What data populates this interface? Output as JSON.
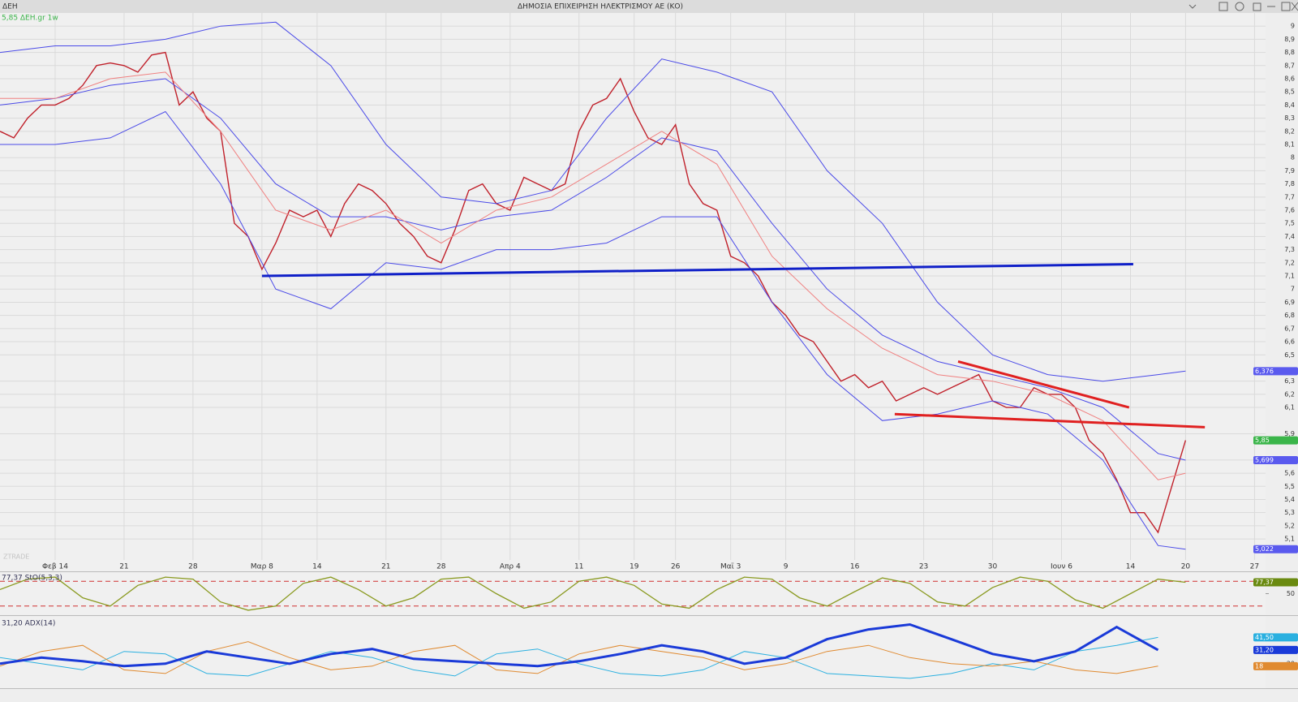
{
  "header": {
    "symbol": "ΔΕΗ",
    "title": "ΔΗΜΟΣΙΑ ΕΠΙΧΕΙΡΗΣΗ ΗΛΕΚΤΡΙΣΜΟΥ ΑΕ (ΚΟ)",
    "watermark": "ZTRADE"
  },
  "chart_data": [
    {
      "type": "line",
      "title": "5,85 ΔΕΗ.gr 1w",
      "grid": true,
      "xlim": [
        -4,
        87.8
      ],
      "xticks": [
        {
          "value": 0,
          "label": "Φεβ 14"
        },
        {
          "value": 5,
          "label": "21"
        },
        {
          "value": 10,
          "label": "28"
        },
        {
          "value": 15,
          "label": "Μαρ 8"
        },
        {
          "value": 19,
          "label": "14"
        },
        {
          "value": 24,
          "label": "21"
        },
        {
          "value": 28,
          "label": "28"
        },
        {
          "value": 33,
          "label": "Απρ 4"
        },
        {
          "value": 38,
          "label": "11"
        },
        {
          "value": 42,
          "label": "19"
        },
        {
          "value": 45,
          "label": "26"
        },
        {
          "value": 49,
          "label": "Μαϊ 3"
        },
        {
          "value": 53,
          "label": "9"
        },
        {
          "value": 58,
          "label": "16"
        },
        {
          "value": 63,
          "label": "23"
        },
        {
          "value": 68,
          "label": "30"
        },
        {
          "value": 73,
          "label": "Ιουν 6"
        },
        {
          "value": 78,
          "label": "14"
        },
        {
          "value": 82,
          "label": "20"
        },
        {
          "value": 87,
          "label": "27"
        }
      ],
      "ylim": [
        4.94,
        9.1
      ],
      "yticks": [
        {
          "value": 5.1,
          "label": "5,1"
        },
        {
          "value": 5.2,
          "label": "5,2"
        },
        {
          "value": 5.3,
          "label": "5,3"
        },
        {
          "value": 5.4,
          "label": "5,4"
        },
        {
          "value": 5.5,
          "label": "5,5"
        },
        {
          "value": 5.6,
          "label": "5,6"
        },
        {
          "value": 5.7,
          "label": "5,7"
        },
        {
          "value": 5.9,
          "label": "5,9"
        },
        {
          "value": 6.1,
          "label": "6,1"
        },
        {
          "value": 6.2,
          "label": "6,2"
        },
        {
          "value": 6.3,
          "label": "6,3"
        },
        {
          "value": 6.5,
          "label": "6,5"
        },
        {
          "value": 6.6,
          "label": "6,6"
        },
        {
          "value": 6.7,
          "label": "6,7"
        },
        {
          "value": 6.8,
          "label": "6,8"
        },
        {
          "value": 6.9,
          "label": "6,9"
        },
        7,
        {
          "value": 7.1,
          "label": "7,1"
        },
        {
          "value": 7.2,
          "label": "7,2"
        },
        {
          "value": 7.3,
          "label": "7,3"
        },
        {
          "value": 7.4,
          "label": "7,4"
        },
        {
          "value": 7.5,
          "label": "7,5"
        },
        {
          "value": 7.6,
          "label": "7,6"
        },
        {
          "value": 7.7,
          "label": "7,7"
        },
        {
          "value": 7.8,
          "label": "7,8"
        },
        {
          "value": 7.9,
          "label": "7,9"
        },
        8,
        {
          "value": 8.1,
          "label": "8,1"
        },
        {
          "value": 8.2,
          "label": "8,2"
        },
        {
          "value": 8.3,
          "label": "8,3"
        },
        {
          "value": 8.4,
          "label": "8,4"
        },
        {
          "value": 8.5,
          "label": "8,5"
        },
        {
          "value": 8.6,
          "label": "8,6"
        },
        {
          "value": 8.7,
          "label": "8,7"
        },
        {
          "value": 8.8,
          "label": "8,8"
        },
        {
          "value": 8.9,
          "label": "8,9"
        },
        9
      ],
      "series": [
        {
          "color": "#c0202a",
          "width": 1.4,
          "x": [
            -4,
            -3,
            -2,
            -1,
            0,
            1,
            2,
            3,
            4,
            5,
            6,
            7,
            8,
            9,
            10,
            11,
            12,
            13,
            14,
            15,
            16,
            17,
            18,
            19,
            20,
            21,
            22,
            23,
            24,
            25,
            26,
            27,
            28,
            29,
            30,
            31,
            32,
            33,
            34,
            35,
            36,
            37,
            38,
            39,
            40,
            41,
            42,
            43,
            44,
            45,
            46,
            47,
            48,
            49,
            50,
            51,
            52,
            53,
            54,
            55,
            56,
            57,
            58,
            59,
            60,
            61,
            62,
            63,
            64,
            65,
            66,
            67,
            68,
            69,
            70,
            71,
            72,
            73,
            74,
            75,
            76,
            77,
            78,
            79,
            80,
            81,
            82
          ],
          "values": [
            8.2,
            8.15,
            8.3,
            8.4,
            8.4,
            8.45,
            8.55,
            8.7,
            8.72,
            8.7,
            8.65,
            8.78,
            8.8,
            8.4,
            8.5,
            8.3,
            8.2,
            7.5,
            7.4,
            7.15,
            7.35,
            7.6,
            7.55,
            7.6,
            7.4,
            7.65,
            7.8,
            7.75,
            7.65,
            7.5,
            7.4,
            7.25,
            7.2,
            7.45,
            7.75,
            7.8,
            7.65,
            7.6,
            7.85,
            7.8,
            7.75,
            7.8,
            8.2,
            8.4,
            8.45,
            8.6,
            8.35,
            8.15,
            8.1,
            8.25,
            7.8,
            7.65,
            7.6,
            7.25,
            7.2,
            7.1,
            6.9,
            6.8,
            6.65,
            6.6,
            6.45,
            6.3,
            6.35,
            6.25,
            6.3,
            6.15,
            6.2,
            6.25,
            6.2,
            6.25,
            6.3,
            6.35,
            6.15,
            6.1,
            6.1,
            6.25,
            6.2,
            6.2,
            6.1,
            5.85,
            5.75,
            5.55,
            5.3,
            5.3,
            5.15,
            5.5,
            5.85
          ],
          "value_label": "5,85",
          "label_color": "#3bb54a"
        },
        {
          "color": "#4a4ae8",
          "width": 1,
          "x": [
            -4,
            0,
            4,
            8,
            12,
            16,
            20,
            24,
            28,
            32,
            36,
            40,
            44,
            48,
            52,
            56,
            60,
            64,
            68,
            72,
            76,
            80,
            82
          ],
          "values": [
            8.8,
            8.85,
            8.85,
            8.9,
            9.0,
            9.03,
            8.7,
            8.1,
            7.7,
            7.65,
            7.75,
            8.3,
            8.75,
            8.65,
            8.5,
            7.9,
            7.5,
            6.9,
            6.5,
            6.35,
            6.3,
            6.35,
            6.376
          ],
          "value_label": "6,376",
          "label_color": "#5a5aee"
        },
        {
          "color": "#4a4ae8",
          "width": 1,
          "x": [
            -4,
            0,
            4,
            8,
            12,
            16,
            20,
            24,
            28,
            32,
            36,
            40,
            44,
            48,
            52,
            56,
            60,
            64,
            68,
            72,
            76,
            80,
            82
          ],
          "values": [
            8.4,
            8.45,
            8.55,
            8.6,
            8.3,
            7.8,
            7.55,
            7.55,
            7.45,
            7.55,
            7.6,
            7.85,
            8.15,
            8.05,
            7.5,
            7.0,
            6.65,
            6.45,
            6.35,
            6.25,
            6.1,
            5.75,
            5.699
          ],
          "value_label": "5,699",
          "label_color": "#5a5aee"
        },
        {
          "color": "#f08080",
          "width": 1,
          "x": [
            -4,
            0,
            4,
            8,
            12,
            16,
            20,
            24,
            28,
            32,
            36,
            40,
            44,
            48,
            52,
            56,
            60,
            64,
            68,
            72,
            76,
            80,
            82
          ],
          "values": [
            8.45,
            8.45,
            8.6,
            8.65,
            8.2,
            7.6,
            7.45,
            7.6,
            7.35,
            7.6,
            7.7,
            7.95,
            8.2,
            7.95,
            7.25,
            6.85,
            6.55,
            6.35,
            6.3,
            6.2,
            6.0,
            5.55,
            5.6
          ]
        },
        {
          "color": "#4a4ae8",
          "width": 1,
          "x": [
            -4,
            0,
            4,
            8,
            12,
            16,
            20,
            24,
            28,
            32,
            36,
            40,
            44,
            48,
            52,
            56,
            60,
            64,
            68,
            72,
            76,
            80,
            82
          ],
          "values": [
            8.1,
            8.1,
            8.15,
            8.35,
            7.8,
            7.0,
            6.85,
            7.2,
            7.15,
            7.3,
            7.3,
            7.35,
            7.55,
            7.55,
            6.9,
            6.35,
            6.0,
            6.05,
            6.15,
            6.05,
            5.7,
            5.05,
            5.022
          ],
          "value_label": "5,022",
          "label_color": "#5a5aee"
        },
        {
          "color": "#1020c8",
          "width": 3,
          "x": [
            15,
            78.2
          ],
          "values": [
            7.1,
            7.19
          ]
        },
        {
          "color": "#e02020",
          "width": 3,
          "x": [
            65.5,
            77.9
          ],
          "values": [
            6.45,
            6.1
          ]
        },
        {
          "color": "#e02020",
          "width": 3,
          "x": [
            60.9,
            83.4
          ],
          "values": [
            6.05,
            5.95
          ]
        }
      ]
    },
    {
      "type": "line",
      "title": "77,37 StO(5,3,3)",
      "xlim": [
        -4,
        87.8
      ],
      "ylim": [
        0,
        100
      ],
      "yticks": [
        50
      ],
      "levels": [
        20,
        80
      ],
      "series": [
        {
          "color": "#8a9a20",
          "width": 1.3,
          "x": [
            -4,
            -2,
            0,
            2,
            4,
            6,
            8,
            10,
            12,
            14,
            16,
            18,
            20,
            22,
            24,
            26,
            28,
            30,
            32,
            34,
            36,
            38,
            40,
            42,
            44,
            46,
            48,
            50,
            52,
            54,
            56,
            58,
            60,
            62,
            64,
            66,
            68,
            70,
            72,
            74,
            76,
            78,
            80,
            82
          ],
          "values": [
            60,
            85,
            90,
            40,
            20,
            70,
            90,
            85,
            30,
            10,
            20,
            75,
            90,
            60,
            20,
            40,
            85,
            90,
            50,
            15,
            30,
            80,
            90,
            70,
            25,
            15,
            60,
            90,
            85,
            40,
            20,
            55,
            88,
            75,
            30,
            20,
            65,
            90,
            80,
            35,
            15,
            50,
            85,
            77.37
          ],
          "value_label": "77,37",
          "label_color": "#6a8a10"
        }
      ]
    },
    {
      "type": "line",
      "title": "31,20 ADX(14)",
      "xlim": [
        -4,
        87.8
      ],
      "ylim": [
        0,
        57
      ],
      "yticks": [
        20
      ],
      "series": [
        {
          "color": "#2ab0e0",
          "width": 1,
          "x": [
            -4,
            -1,
            2,
            5,
            8,
            11,
            14,
            17,
            20,
            23,
            26,
            29,
            32,
            35,
            38,
            41,
            44,
            47,
            50,
            53,
            56,
            59,
            62,
            65,
            68,
            71,
            74,
            77,
            80
          ],
          "values": [
            25,
            20,
            15,
            30,
            28,
            12,
            10,
            20,
            30,
            25,
            15,
            10,
            28,
            32,
            20,
            12,
            10,
            15,
            30,
            25,
            12,
            10,
            8,
            12,
            20,
            15,
            30,
            35,
            41.5
          ],
          "value_label": "41,50",
          "label_color": "#2ab0e0"
        },
        {
          "color": "#e08a30",
          "width": 1,
          "x": [
            -4,
            -1,
            2,
            5,
            8,
            11,
            14,
            17,
            20,
            23,
            26,
            29,
            32,
            35,
            38,
            41,
            44,
            47,
            50,
            53,
            56,
            59,
            62,
            65,
            68,
            71,
            74,
            77,
            80
          ],
          "values": [
            18,
            30,
            35,
            15,
            12,
            30,
            38,
            25,
            15,
            18,
            30,
            35,
            15,
            12,
            28,
            35,
            30,
            25,
            15,
            20,
            30,
            35,
            25,
            20,
            18,
            22,
            15,
            12,
            18
          ],
          "value_label": "18",
          "label_color": "#e08a30"
        },
        {
          "color": "#1a3ad8",
          "width": 3,
          "x": [
            -4,
            -1,
            2,
            5,
            8,
            11,
            14,
            17,
            20,
            23,
            26,
            29,
            32,
            35,
            38,
            41,
            44,
            47,
            50,
            53,
            56,
            59,
            62,
            65,
            68,
            71,
            74,
            77,
            80
          ],
          "values": [
            20,
            25,
            22,
            18,
            20,
            30,
            25,
            20,
            28,
            32,
            24,
            22,
            20,
            18,
            22,
            28,
            35,
            30,
            20,
            25,
            40,
            48,
            52,
            40,
            28,
            22,
            30,
            50,
            31.2
          ],
          "value_label": "31,20",
          "label_color": "#1a3ad8"
        }
      ]
    }
  ]
}
